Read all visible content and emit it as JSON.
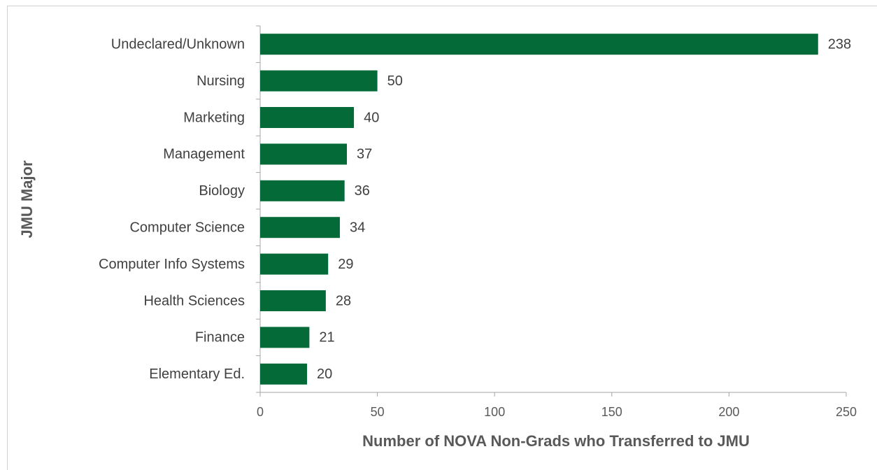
{
  "chart_data": {
    "type": "bar",
    "orientation": "horizontal",
    "categories": [
      "Undeclared/Unknown",
      "Nursing",
      "Marketing",
      "Management",
      "Biology",
      "Computer Science",
      "Computer Info Systems",
      "Health Sciences",
      "Finance",
      "Elementary Ed."
    ],
    "values": [
      238,
      50,
      40,
      37,
      36,
      34,
      29,
      28,
      21,
      20
    ],
    "color": "#046a38",
    "xlim": [
      0,
      250
    ],
    "xticks": [
      0,
      50,
      100,
      150,
      200,
      250
    ],
    "xlabel": "Number of NOVA Non-Grads who Transferred to JMU",
    "ylabel": "JMU Major",
    "grid": false
  }
}
